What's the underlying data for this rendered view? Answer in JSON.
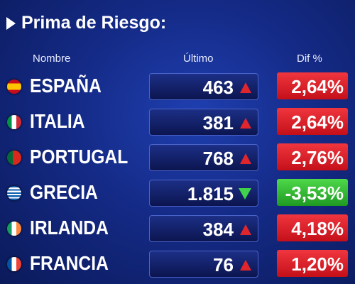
{
  "header": {
    "title": "Prima de Riesgo:"
  },
  "table": {
    "columns": [
      "Nombre",
      "Último",
      "Dif %"
    ],
    "rows": [
      [
        "ESPAÑA",
        "463",
        "2,64%"
      ],
      [
        "ITALIA",
        "381",
        "2,64%"
      ],
      [
        "PORTUGAL",
        "768",
        "2,76%"
      ],
      [
        "GRECIA",
        "1.815",
        "-3,53%"
      ],
      [
        "IRLANDA",
        "384",
        "4,18%"
      ],
      [
        "FRANCIA",
        "76",
        "1,20%"
      ]
    ]
  }
}
